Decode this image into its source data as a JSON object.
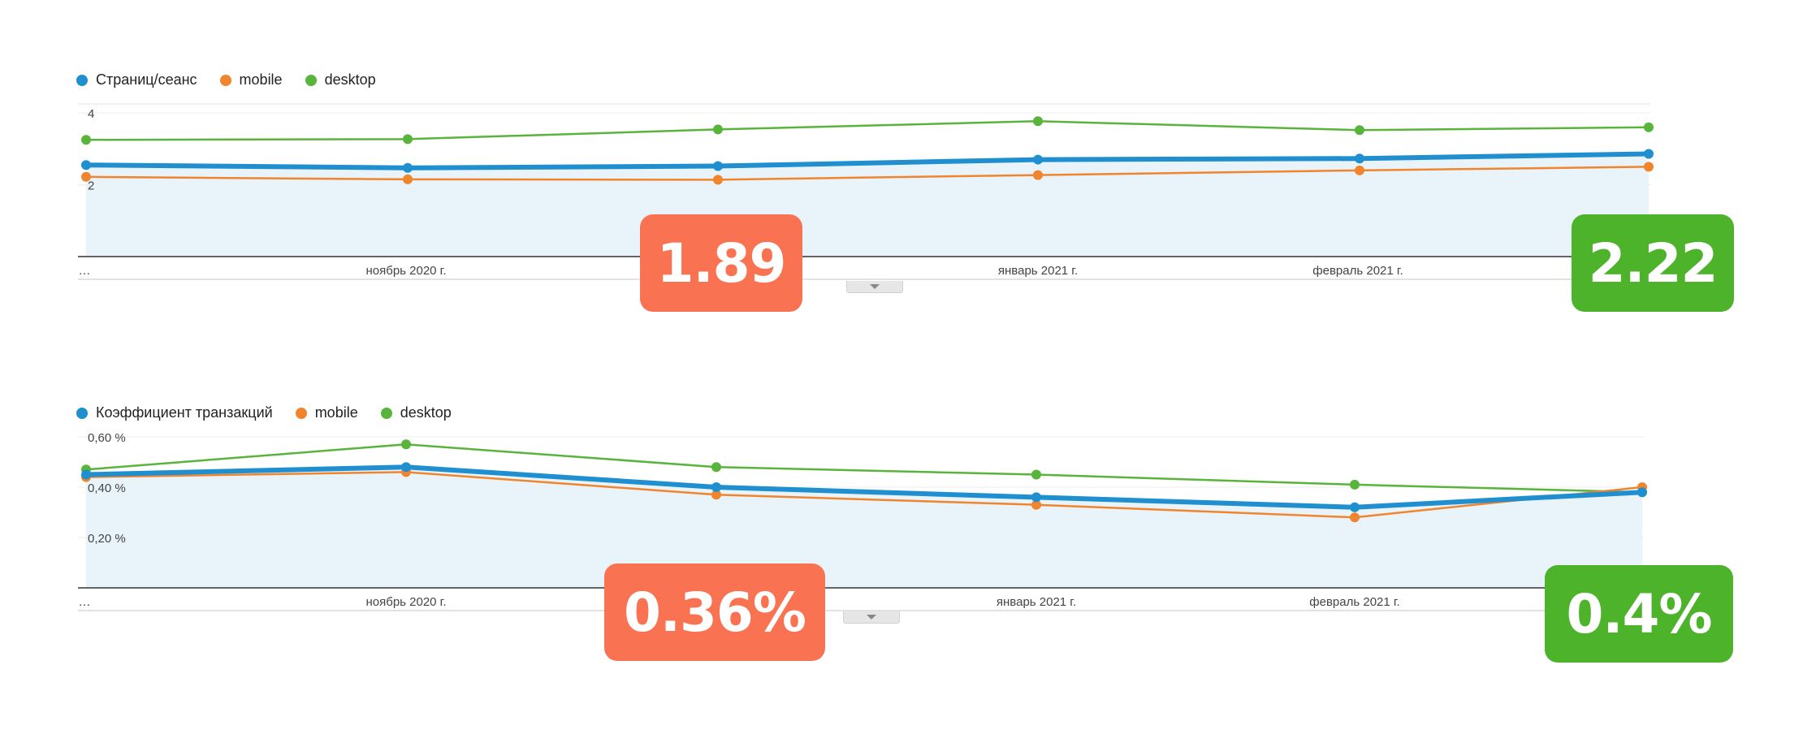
{
  "colors": {
    "primary": "#1f8fcf",
    "mobile": "#f0852d",
    "desktop": "#58b43a",
    "area": "#e9f3fa",
    "badge_bad": "#f97252",
    "badge_good": "#4cb32b"
  },
  "chart_data": [
    {
      "type": "line",
      "legend": [
        "Страниц/сеанс",
        "mobile",
        "desktop"
      ],
      "x_ticks": [
        "…",
        "ноябрь 2020 г.",
        "январь 2021 г.",
        "февраль 2021 г."
      ],
      "y_ticks": [
        "4",
        "2"
      ],
      "ylim": [
        0,
        4.25
      ],
      "series": [
        {
          "name": "Страниц/сеанс",
          "values": [
            2.55,
            2.47,
            2.52,
            2.7,
            2.73,
            2.86
          ]
        },
        {
          "name": "mobile",
          "values": [
            2.22,
            2.15,
            2.14,
            2.27,
            2.4,
            2.5
          ]
        },
        {
          "name": "desktop",
          "values": [
            3.25,
            3.27,
            3.54,
            3.77,
            3.52,
            3.6
          ]
        }
      ],
      "badges": [
        {
          "label": "1.89",
          "kind": "bad"
        },
        {
          "label": "2.22",
          "kind": "good"
        }
      ]
    },
    {
      "type": "line",
      "legend": [
        "Коэффициент транзакций",
        "mobile",
        "desktop"
      ],
      "x_ticks": [
        "…",
        "ноябрь 2020 г.",
        "январь 2021 г.",
        "февраль 2021 г."
      ],
      "y_ticks": [
        "0,60 %",
        "0,40 %",
        "0,20 %"
      ],
      "ylim": [
        0,
        0.6
      ],
      "series": [
        {
          "name": "Коэффициент транзакций",
          "values": [
            0.45,
            0.48,
            0.4,
            0.36,
            0.32,
            0.38
          ]
        },
        {
          "name": "mobile",
          "values": [
            0.44,
            0.46,
            0.37,
            0.33,
            0.28,
            0.4
          ]
        },
        {
          "name": "desktop",
          "values": [
            0.47,
            0.57,
            0.48,
            0.45,
            0.41,
            0.38
          ]
        }
      ],
      "badges": [
        {
          "label": "0.36%",
          "kind": "bad"
        },
        {
          "label": "0.4%",
          "kind": "good"
        }
      ]
    }
  ]
}
